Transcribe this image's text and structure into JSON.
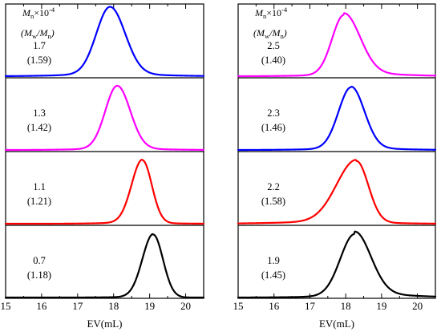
{
  "chart_data": [
    {
      "type": "line",
      "panel": "left",
      "header": {
        "line1_main": "M",
        "line1_sub": "n",
        "line1_rest": "×10",
        "line1_sup": "-4",
        "line2_open": "(",
        "line2_m1": "M",
        "line2_sub1": "w",
        "line2_slash": "/",
        "line2_m2": "M",
        "line2_sub2": "n",
        "line2_close": ")"
      },
      "xlabel": "EV(mL)",
      "xlim": [
        15,
        20.5
      ],
      "xticks": [
        "15",
        "16",
        "17",
        "18",
        "19",
        "20"
      ],
      "series": [
        {
          "color": "#0000ff",
          "peak": 17.9,
          "sigma_left": 0.38,
          "sigma_right": 0.42,
          "height": 0.92,
          "tail_left": 0.03,
          "tail_right": 0.03,
          "label_mn": "1.7",
          "label_pdi": "(1.59)"
        },
        {
          "color": "#ff00ff",
          "peak": 18.1,
          "sigma_left": 0.33,
          "sigma_right": 0.36,
          "height": 0.86,
          "tail_left": 0.02,
          "tail_right": 0.02,
          "label_mn": "1.3",
          "label_pdi": "(1.42)"
        },
        {
          "color": "#ff0000",
          "peak": 18.8,
          "sigma_left": 0.3,
          "sigma_right": 0.26,
          "height": 0.86,
          "tail_left": 0.02,
          "tail_right": 0.01,
          "label_mn": "1.1",
          "label_pdi": "(1.21)"
        },
        {
          "color": "#000000",
          "peak": 19.1,
          "sigma_left": 0.3,
          "sigma_right": 0.27,
          "height": 0.86,
          "tail_left": 0.01,
          "tail_right": 0.0,
          "label_mn": "0.7",
          "label_pdi": "(1.18)"
        }
      ]
    },
    {
      "type": "line",
      "panel": "right",
      "header": {
        "line1_main": "M",
        "line1_sub": "n",
        "line1_rest": "×10",
        "line1_sup": "-4",
        "line2_open": "(",
        "line2_m1": "M",
        "line2_sub1": "w",
        "line2_slash": "/",
        "line2_m2": "M",
        "line2_sub2": "n",
        "line2_close": ")"
      },
      "xlabel": "EV(mL)",
      "xlim": [
        15,
        20.5
      ],
      "xticks": [
        "15",
        "16",
        "17",
        "18",
        "19",
        "20"
      ],
      "series": [
        {
          "color": "#ff00ff",
          "peak": 17.95,
          "sigma_left": 0.33,
          "sigma_right": 0.45,
          "height": 0.82,
          "tail_left": 0.02,
          "tail_right": 0.05,
          "label_mn": "2.5",
          "label_pdi": "(1.40)"
        },
        {
          "color": "#0000ff",
          "peak": 18.15,
          "sigma_left": 0.35,
          "sigma_right": 0.37,
          "height": 0.84,
          "tail_left": 0.02,
          "tail_right": 0.03,
          "label_mn": "2.3",
          "label_pdi": "(1.46)"
        },
        {
          "color": "#ff0000",
          "peak": 18.3,
          "sigma_left": 0.55,
          "sigma_right": 0.33,
          "height": 0.84,
          "tail_left": 0.04,
          "tail_right": 0.02,
          "label_mn": "2.2",
          "label_pdi": "(1.58)"
        },
        {
          "color": "#000000",
          "peak": 18.25,
          "sigma_left": 0.4,
          "sigma_right": 0.45,
          "height": 0.85,
          "tail_left": 0.02,
          "tail_right": 0.06,
          "label_mn": "1.9",
          "label_pdi": "(1.45)"
        }
      ]
    }
  ]
}
